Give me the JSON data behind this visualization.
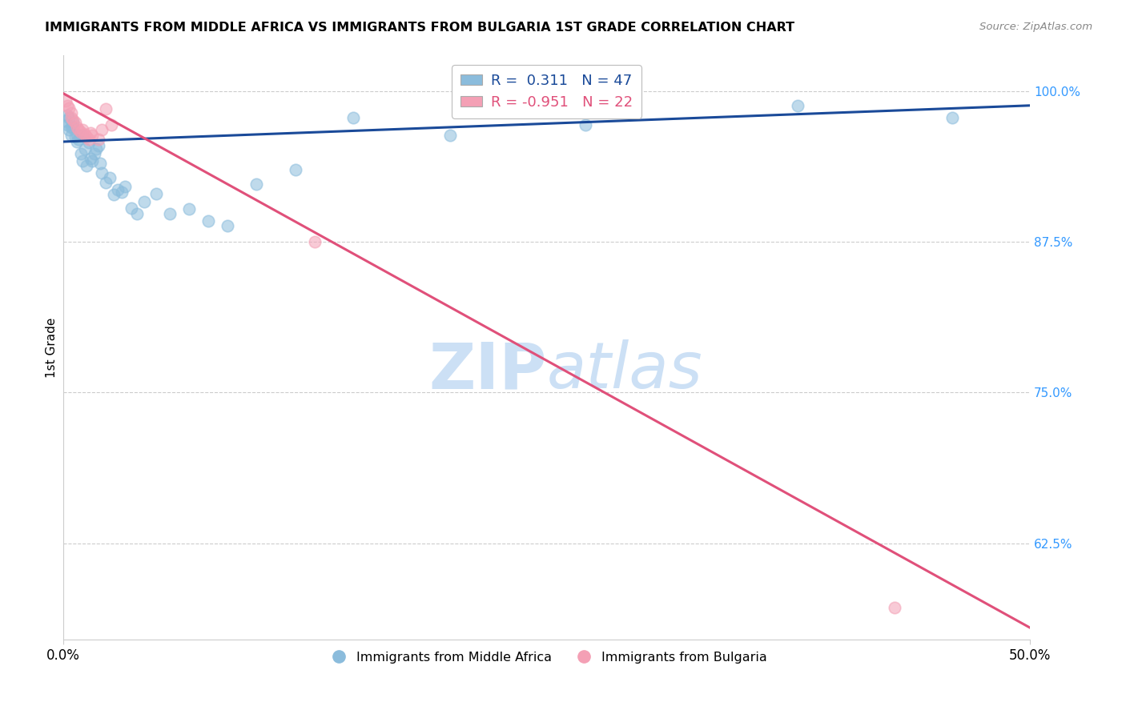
{
  "title": "IMMIGRANTS FROM MIDDLE AFRICA VS IMMIGRANTS FROM BULGARIA 1ST GRADE CORRELATION CHART",
  "source": "Source: ZipAtlas.com",
  "ylabel": "1st Grade",
  "y_tick_labels_right": [
    "100.0%",
    "87.5%",
    "75.0%",
    "62.5%"
  ],
  "y_tick_values_right": [
    1.0,
    0.875,
    0.75,
    0.625
  ],
  "xlim": [
    0.0,
    0.5
  ],
  "ylim": [
    0.545,
    1.03
  ],
  "legend_blue_label": "Immigrants from Middle Africa",
  "legend_pink_label": "Immigrants from Bulgaria",
  "R_blue": 0.311,
  "N_blue": 47,
  "R_pink": -0.951,
  "N_pink": 22,
  "blue_color": "#8bbcdc",
  "pink_color": "#f4a0b5",
  "blue_line_color": "#1a4a99",
  "pink_line_color": "#e0507a",
  "background_color": "#ffffff",
  "watermark_color": "#cce0f5",
  "blue_scatter_x": [
    0.001,
    0.002,
    0.002,
    0.003,
    0.003,
    0.004,
    0.004,
    0.005,
    0.005,
    0.006,
    0.007,
    0.007,
    0.008,
    0.009,
    0.01,
    0.01,
    0.011,
    0.012,
    0.013,
    0.014,
    0.015,
    0.016,
    0.017,
    0.018,
    0.019,
    0.02,
    0.022,
    0.024,
    0.026,
    0.028,
    0.03,
    0.032,
    0.035,
    0.038,
    0.042,
    0.048,
    0.055,
    0.065,
    0.075,
    0.085,
    0.1,
    0.12,
    0.15,
    0.2,
    0.27,
    0.38,
    0.46
  ],
  "blue_scatter_y": [
    0.975,
    0.98,
    0.972,
    0.968,
    0.978,
    0.963,
    0.97,
    0.97,
    0.974,
    0.962,
    0.958,
    0.964,
    0.96,
    0.948,
    0.963,
    0.942,
    0.952,
    0.938,
    0.957,
    0.944,
    0.942,
    0.948,
    0.952,
    0.955,
    0.94,
    0.932,
    0.924,
    0.928,
    0.914,
    0.918,
    0.916,
    0.921,
    0.903,
    0.898,
    0.908,
    0.915,
    0.898,
    0.902,
    0.892,
    0.888,
    0.923,
    0.935,
    0.978,
    0.963,
    0.972,
    0.988,
    0.978
  ],
  "pink_scatter_x": [
    0.001,
    0.002,
    0.003,
    0.004,
    0.004,
    0.005,
    0.006,
    0.007,
    0.008,
    0.009,
    0.01,
    0.011,
    0.012,
    0.013,
    0.014,
    0.015,
    0.018,
    0.02,
    0.022,
    0.025,
    0.13,
    0.43
  ],
  "pink_scatter_y": [
    0.992,
    0.988,
    0.986,
    0.982,
    0.978,
    0.976,
    0.974,
    0.97,
    0.968,
    0.966,
    0.968,
    0.964,
    0.962,
    0.96,
    0.965,
    0.963,
    0.96,
    0.968,
    0.985,
    0.972,
    0.875,
    0.572
  ],
  "blue_trendline": [
    0.958,
    0.988
  ],
  "pink_trendline": [
    0.998,
    0.555
  ]
}
